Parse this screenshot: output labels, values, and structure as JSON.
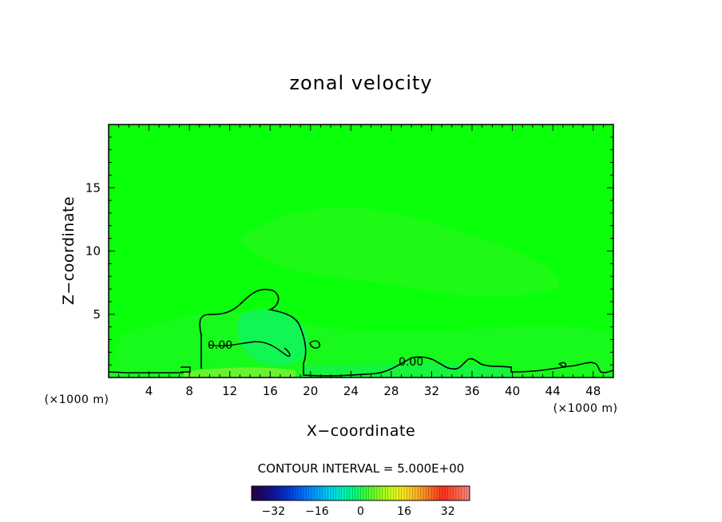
{
  "chart_data": {
    "type": "heatmap",
    "title": "zonal velocity",
    "xlabel": "X−coordinate",
    "ylabel": "Z−coordinate",
    "x_unit_label": "(×1000 m)",
    "y_unit_label": "(×1000 m)",
    "xlim": [
      0,
      50
    ],
    "ylim": [
      0,
      20
    ],
    "x_ticks": [
      4,
      8,
      12,
      16,
      20,
      24,
      28,
      32,
      36,
      40,
      44,
      48
    ],
    "y_ticks": [
      5,
      10,
      15
    ],
    "contour_level_labels": [
      "0.00",
      "0.00"
    ],
    "contour_interval_text": "CONTOUR INTERVAL = 5.000E+00",
    "colorbar": {
      "range": [
        -40,
        40
      ],
      "ticks": [
        -32,
        -16,
        0,
        16,
        32
      ],
      "tick_labels": [
        "−32",
        "−16",
        "0",
        "16",
        "32"
      ],
      "colors": [
        "#2a0048",
        "#1a0a78",
        "#0f1ea8",
        "#0040e0",
        "#0070ff",
        "#00a0ff",
        "#00d0f0",
        "#00f0c0",
        "#00ff80",
        "#40ff30",
        "#90ff20",
        "#d0ff20",
        "#ffe020",
        "#ffb020",
        "#ff7020",
        "#ff3020",
        "#ff6040",
        "#ff8080"
      ]
    },
    "field_description_values": {
      "background": 0,
      "weak_positive_near_surface": 2,
      "weak_negative_region": -1
    }
  },
  "colors": {
    "field_base": "#0aff0a",
    "field_light": "#2bf51e",
    "field_cyan": "#0ff55a",
    "field_yellow": "#6af53a",
    "frame": "#000000"
  }
}
